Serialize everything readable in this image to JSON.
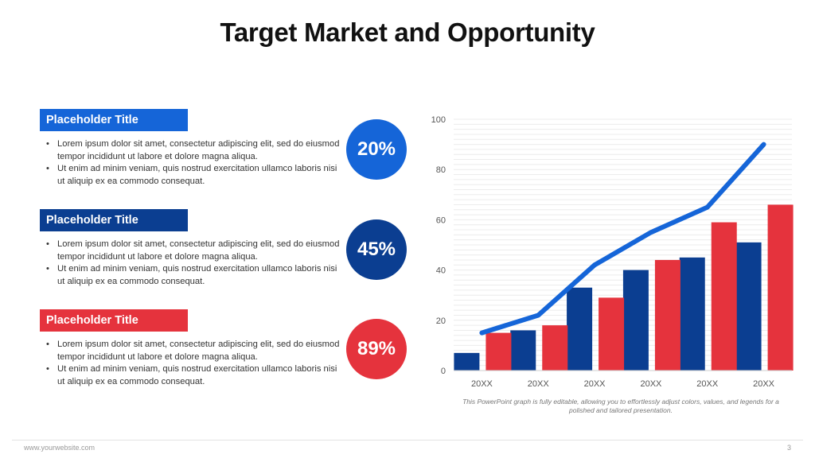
{
  "slide": {
    "title": "Target Market and Opportunity",
    "footer_url": "www.yourwebsite.com",
    "page_number": "3",
    "caption": "This PowerPoint graph is fully editable, allowing you to effortlessly adjust colors, values, and legends for a polished and tailored presentation."
  },
  "colors": {
    "blue_bright": "#1565D8",
    "blue_dark": "#0B3E91",
    "red": "#E5333D",
    "line": "#1565D8"
  },
  "sections": [
    {
      "heading": "Placeholder Title",
      "bullet1": "Lorem ipsum dolor sit amet, consectetur  adipiscing elit, sed do eiusmod tempor incididunt ut labore et dolore magna aliqua.",
      "bullet2": " Ut enim ad minim veniam, quis nostrud exercitation ullamco laboris nisi ut aliquip ex ea commodo consequat.",
      "stat": "20%"
    },
    {
      "heading": "Placeholder Title",
      "bullet1": "Lorem ipsum dolor sit amet, consectetur  adipiscing elit, sed do eiusmod tempor incididunt ut labore et dolore magna aliqua.",
      "bullet2": " Ut enim ad minim veniam, quis nostrud exercitation ullamco laboris nisi ut aliquip ex ea commodo consequat.",
      "stat": "45%"
    },
    {
      "heading": "Placeholder Title",
      "bullet1": "Lorem ipsum dolor sit amet, consectetur  adipiscing elit, sed do eiusmod tempor incididunt ut labore et dolore magna aliqua.",
      "bullet2": " Ut enim ad minim veniam, quis nostrud exercitation ullamco laboris nisi ut aliquip ex ea commodo consequat.",
      "stat": "89%"
    }
  ],
  "chart_data": {
    "type": "bar",
    "categories": [
      "20XX",
      "20XX",
      "20XX",
      "20XX",
      "20XX",
      "20XX"
    ],
    "series": [
      {
        "values": [
          7,
          16,
          33,
          40,
          45,
          51
        ],
        "color": "#0B3E91"
      },
      {
        "values": [
          15,
          18,
          29,
          44,
          59,
          66
        ],
        "color": "#E5333D"
      },
      {
        "type": "line",
        "values": [
          15,
          22,
          42,
          55,
          65,
          90
        ],
        "color": "#1565D8"
      }
    ],
    "ylim": [
      0,
      100
    ],
    "yticks": [
      0,
      20,
      40,
      60,
      80,
      100
    ],
    "grid": true,
    "legend": "none",
    "title": "",
    "xlabel": "",
    "ylabel": ""
  }
}
